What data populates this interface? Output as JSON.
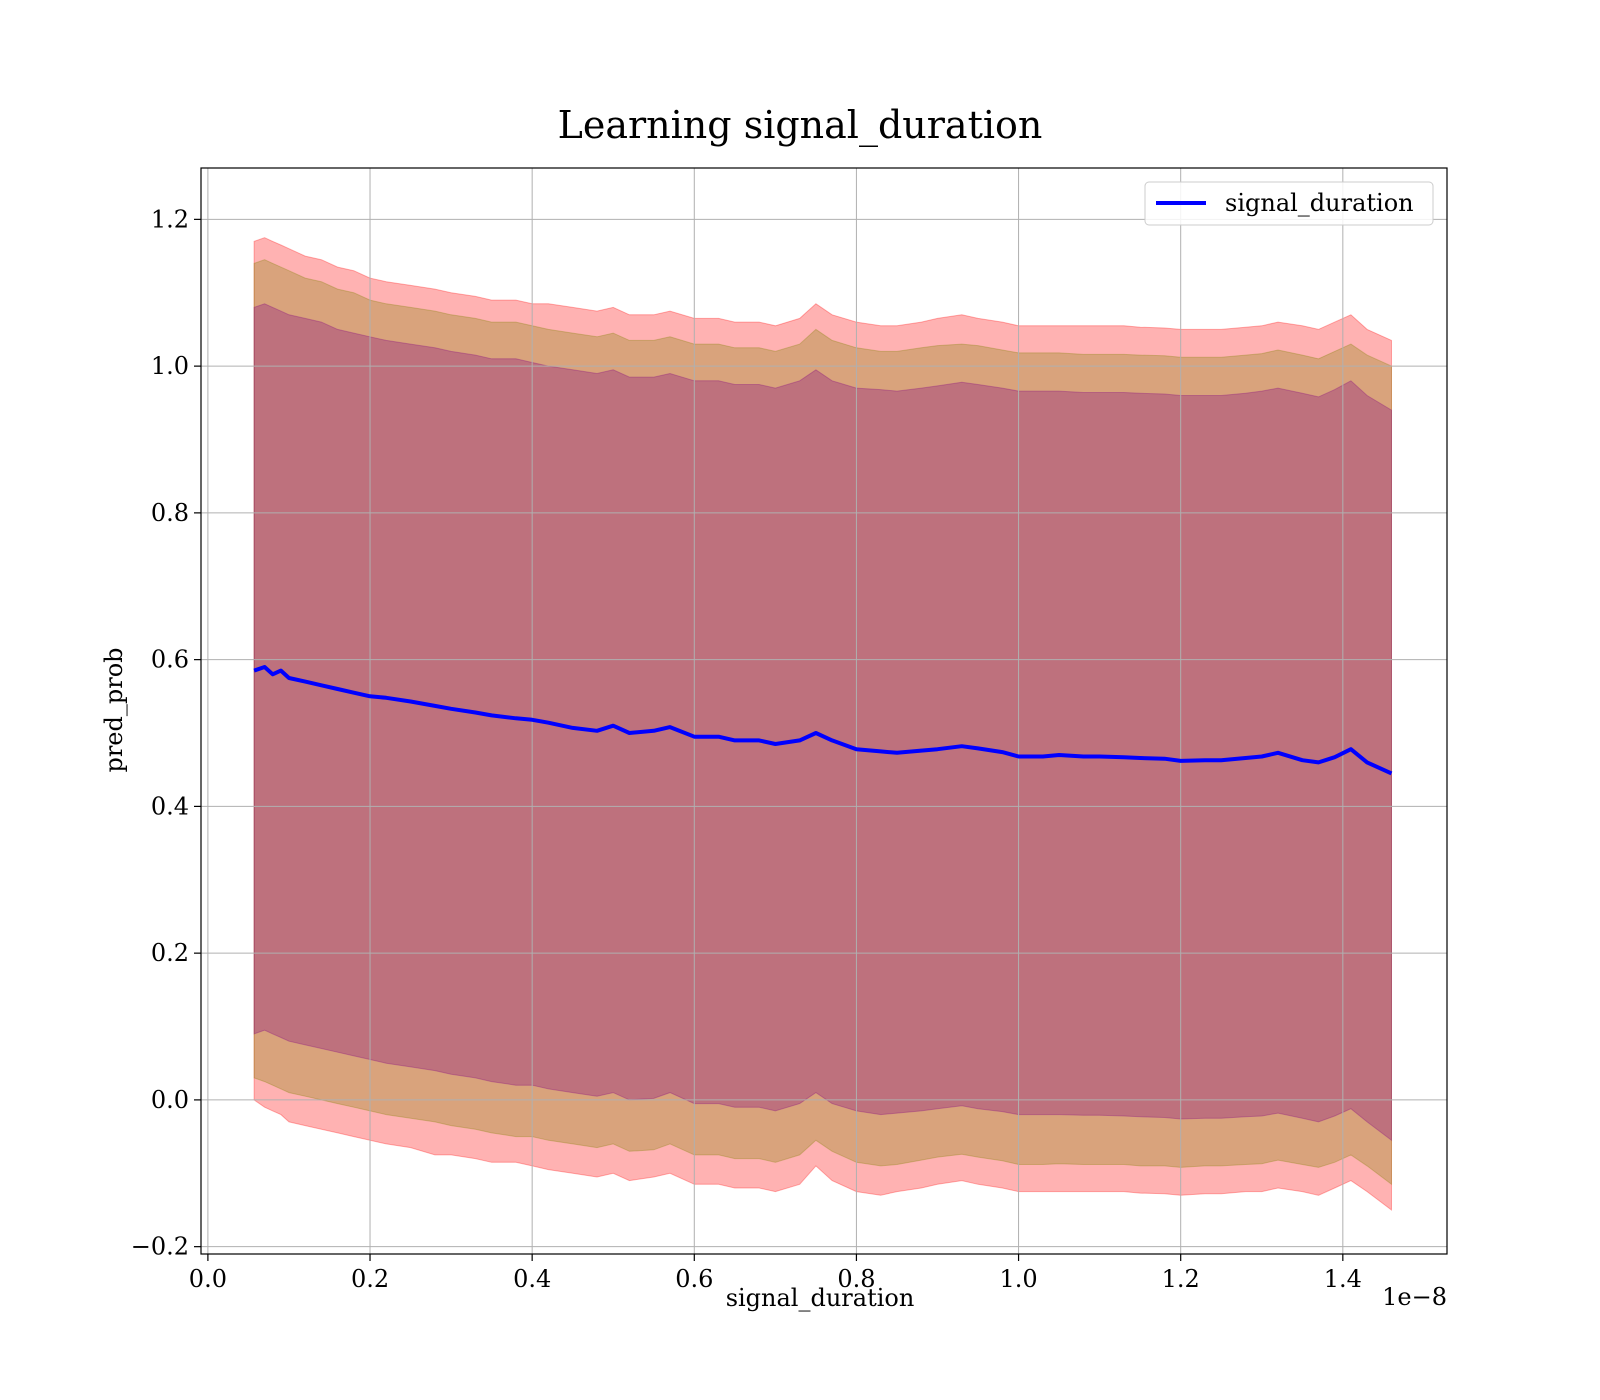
{
  "chart_data": {
    "type": "line",
    "title": "Learning signal_duration",
    "xlabel": "signal_duration",
    "ylabel": "pred_prob",
    "x_offset_label": "1e−8",
    "xlim": [
      -0.0085,
      1.5285
    ],
    "ylim": [
      -0.21,
      1.27
    ],
    "xticks": [
      0.0,
      0.2,
      0.4,
      0.6,
      0.8,
      1.0,
      1.2,
      1.4
    ],
    "xtick_labels": [
      "0.0",
      "0.2",
      "0.4",
      "0.6",
      "0.8",
      "1.0",
      "1.2",
      "1.4"
    ],
    "yticks": [
      -0.2,
      0.0,
      0.2,
      0.4,
      0.6,
      0.8,
      1.0,
      1.2
    ],
    "ytick_labels": [
      "−0.2",
      "0.0",
      "0.2",
      "0.4",
      "0.6",
      "0.8",
      "1.0",
      "1.2"
    ],
    "grid": true,
    "legend": {
      "position": "upper right",
      "entries": [
        "signal_duration"
      ]
    },
    "colors": {
      "line": "#0000ff",
      "band_outer": "#ff0000",
      "band_middle": "#808000",
      "band_inner": "#800080",
      "grid": "#b0b0b0"
    },
    "series": [
      {
        "name": "signal_duration",
        "x": [
          0.057,
          0.07,
          0.08,
          0.09,
          0.1,
          0.12,
          0.14,
          0.16,
          0.18,
          0.2,
          0.22,
          0.25,
          0.28,
          0.3,
          0.33,
          0.35,
          0.38,
          0.4,
          0.42,
          0.45,
          0.48,
          0.5,
          0.52,
          0.55,
          0.57,
          0.6,
          0.63,
          0.65,
          0.68,
          0.7,
          0.73,
          0.75,
          0.77,
          0.8,
          0.83,
          0.85,
          0.88,
          0.9,
          0.93,
          0.95,
          0.98,
          1.0,
          1.03,
          1.05,
          1.08,
          1.1,
          1.13,
          1.15,
          1.18,
          1.2,
          1.23,
          1.25,
          1.28,
          1.3,
          1.32,
          1.35,
          1.37,
          1.39,
          1.41,
          1.43,
          1.46
        ],
        "y": [
          0.585,
          0.59,
          0.58,
          0.585,
          0.575,
          0.57,
          0.565,
          0.56,
          0.555,
          0.55,
          0.548,
          0.543,
          0.537,
          0.533,
          0.528,
          0.524,
          0.52,
          0.518,
          0.514,
          0.507,
          0.503,
          0.51,
          0.5,
          0.503,
          0.508,
          0.495,
          0.495,
          0.49,
          0.49,
          0.485,
          0.49,
          0.5,
          0.49,
          0.478,
          0.475,
          0.473,
          0.476,
          0.478,
          0.482,
          0.479,
          0.474,
          0.468,
          0.468,
          0.47,
          0.468,
          0.468,
          0.467,
          0.466,
          0.465,
          0.462,
          0.463,
          0.463,
          0.466,
          0.468,
          0.473,
          0.463,
          0.46,
          0.467,
          0.478,
          0.46,
          0.445
        ]
      }
    ],
    "bands": [
      {
        "color": "red",
        "upper": [
          1.17,
          1.175,
          1.17,
          1.165,
          1.16,
          1.15,
          1.145,
          1.135,
          1.13,
          1.12,
          1.115,
          1.11,
          1.105,
          1.1,
          1.095,
          1.09,
          1.09,
          1.085,
          1.085,
          1.08,
          1.075,
          1.08,
          1.07,
          1.07,
          1.075,
          1.065,
          1.065,
          1.06,
          1.06,
          1.055,
          1.065,
          1.085,
          1.07,
          1.06,
          1.055,
          1.055,
          1.06,
          1.065,
          1.07,
          1.065,
          1.06,
          1.055,
          1.055,
          1.055,
          1.055,
          1.055,
          1.055,
          1.053,
          1.052,
          1.05,
          1.05,
          1.05,
          1.053,
          1.055,
          1.06,
          1.055,
          1.05,
          1.06,
          1.07,
          1.05,
          1.035
        ],
        "lower": [
          0.0,
          -0.01,
          -0.015,
          -0.02,
          -0.03,
          -0.035,
          -0.04,
          -0.045,
          -0.05,
          -0.055,
          -0.06,
          -0.065,
          -0.075,
          -0.075,
          -0.08,
          -0.085,
          -0.085,
          -0.09,
          -0.095,
          -0.1,
          -0.105,
          -0.1,
          -0.11,
          -0.105,
          -0.1,
          -0.115,
          -0.115,
          -0.12,
          -0.12,
          -0.125,
          -0.115,
          -0.09,
          -0.11,
          -0.125,
          -0.13,
          -0.125,
          -0.12,
          -0.115,
          -0.11,
          -0.115,
          -0.12,
          -0.125,
          -0.125,
          -0.125,
          -0.125,
          -0.125,
          -0.125,
          -0.127,
          -0.128,
          -0.13,
          -0.128,
          -0.128,
          -0.125,
          -0.125,
          -0.12,
          -0.125,
          -0.13,
          -0.12,
          -0.11,
          -0.125,
          -0.15
        ]
      },
      {
        "color": "olive",
        "upper": [
          1.14,
          1.145,
          1.14,
          1.135,
          1.13,
          1.12,
          1.115,
          1.105,
          1.1,
          1.09,
          1.085,
          1.08,
          1.075,
          1.07,
          1.065,
          1.06,
          1.06,
          1.055,
          1.05,
          1.045,
          1.04,
          1.045,
          1.035,
          1.035,
          1.04,
          1.03,
          1.03,
          1.025,
          1.025,
          1.02,
          1.03,
          1.05,
          1.035,
          1.025,
          1.02,
          1.02,
          1.025,
          1.028,
          1.03,
          1.028,
          1.022,
          1.018,
          1.018,
          1.018,
          1.016,
          1.016,
          1.016,
          1.015,
          1.014,
          1.012,
          1.012,
          1.012,
          1.015,
          1.017,
          1.022,
          1.015,
          1.01,
          1.02,
          1.03,
          1.015,
          1.0
        ],
        "lower": [
          0.03,
          0.025,
          0.02,
          0.015,
          0.01,
          0.005,
          0.0,
          -0.005,
          -0.01,
          -0.015,
          -0.02,
          -0.025,
          -0.03,
          -0.035,
          -0.04,
          -0.045,
          -0.05,
          -0.05,
          -0.055,
          -0.06,
          -0.065,
          -0.06,
          -0.07,
          -0.068,
          -0.06,
          -0.075,
          -0.075,
          -0.08,
          -0.08,
          -0.085,
          -0.075,
          -0.055,
          -0.07,
          -0.085,
          -0.09,
          -0.088,
          -0.082,
          -0.078,
          -0.074,
          -0.078,
          -0.083,
          -0.088,
          -0.088,
          -0.087,
          -0.088,
          -0.088,
          -0.088,
          -0.09,
          -0.09,
          -0.092,
          -0.09,
          -0.09,
          -0.088,
          -0.087,
          -0.082,
          -0.088,
          -0.092,
          -0.085,
          -0.075,
          -0.09,
          -0.115
        ]
      },
      {
        "color": "purple",
        "upper": [
          1.08,
          1.085,
          1.08,
          1.075,
          1.07,
          1.065,
          1.06,
          1.05,
          1.045,
          1.04,
          1.035,
          1.03,
          1.025,
          1.02,
          1.015,
          1.01,
          1.01,
          1.005,
          1.0,
          0.995,
          0.99,
          0.995,
          0.985,
          0.985,
          0.99,
          0.98,
          0.98,
          0.975,
          0.975,
          0.97,
          0.98,
          0.995,
          0.98,
          0.97,
          0.968,
          0.966,
          0.97,
          0.973,
          0.978,
          0.975,
          0.97,
          0.966,
          0.966,
          0.966,
          0.964,
          0.964,
          0.964,
          0.963,
          0.962,
          0.96,
          0.96,
          0.96,
          0.963,
          0.966,
          0.97,
          0.963,
          0.958,
          0.968,
          0.98,
          0.96,
          0.94
        ],
        "lower": [
          0.09,
          0.095,
          0.09,
          0.085,
          0.08,
          0.075,
          0.07,
          0.065,
          0.06,
          0.055,
          0.05,
          0.045,
          0.04,
          0.035,
          0.03,
          0.025,
          0.02,
          0.02,
          0.015,
          0.01,
          0.005,
          0.01,
          0.0,
          0.002,
          0.01,
          -0.005,
          -0.005,
          -0.01,
          -0.01,
          -0.015,
          -0.005,
          0.01,
          -0.005,
          -0.015,
          -0.02,
          -0.018,
          -0.015,
          -0.012,
          -0.008,
          -0.012,
          -0.016,
          -0.02,
          -0.02,
          -0.02,
          -0.021,
          -0.021,
          -0.022,
          -0.023,
          -0.024,
          -0.026,
          -0.025,
          -0.025,
          -0.023,
          -0.022,
          -0.018,
          -0.025,
          -0.03,
          -0.022,
          -0.012,
          -0.03,
          -0.055
        ]
      }
    ]
  }
}
